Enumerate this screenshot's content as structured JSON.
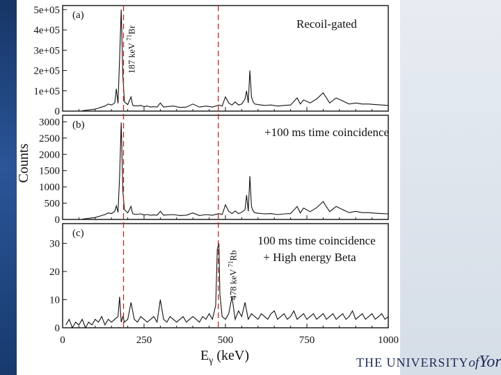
{
  "chart_data": [
    {
      "type": "line",
      "panel": "(a)",
      "annotation": "Recoil-gated",
      "ylim": [
        0,
        520000
      ],
      "yticks": [
        0,
        100000,
        200000,
        300000,
        400000,
        500000
      ],
      "ytick_labels": [
        "0",
        "1e+05",
        "2e+05",
        "3e+05",
        "4e+05",
        "5e+05"
      ],
      "peak_label": {
        "energy": 187,
        "text": "187 keV",
        "isotope": "Br",
        "mass": "71"
      },
      "series": [
        {
          "x": [
            60,
            100,
            110,
            120,
            130,
            140,
            150,
            160,
            165,
            170,
            175,
            180,
            185,
            190,
            200,
            210,
            215,
            220,
            230,
            240,
            250,
            260,
            270,
            280,
            290,
            300,
            310,
            320,
            340,
            360,
            380,
            400,
            420,
            440,
            460,
            480,
            490,
            500,
            510,
            520,
            530,
            540,
            550,
            560,
            565,
            570,
            575,
            580,
            585,
            590,
            600,
            620,
            640,
            660,
            680,
            700,
            720,
            730,
            740,
            760,
            780,
            800,
            820,
            840,
            860,
            880,
            900,
            920,
            940,
            960,
            980,
            1000
          ],
          "y": [
            2000,
            10000,
            15000,
            20000,
            25000,
            35000,
            30000,
            40000,
            110000,
            38000,
            260000,
            500000,
            170000,
            45000,
            32000,
            70000,
            30000,
            26000,
            26000,
            28000,
            22000,
            25000,
            20000,
            22000,
            20000,
            40000,
            20000,
            22000,
            25000,
            18000,
            20000,
            35000,
            20000,
            25000,
            20000,
            30000,
            25000,
            70000,
            40000,
            30000,
            45000,
            30000,
            35000,
            60000,
            100000,
            40000,
            200000,
            70000,
            45000,
            35000,
            32000,
            28000,
            30000,
            25000,
            28000,
            30000,
            65000,
            35000,
            55000,
            40000,
            60000,
            90000,
            40000,
            65000,
            50000,
            35000,
            40000,
            35000,
            35000,
            32000,
            30000,
            28000
          ]
        }
      ]
    },
    {
      "type": "line",
      "panel": "(b)",
      "annotation": "+100 ms time coincidence",
      "ylim": [
        0,
        3200
      ],
      "yticks": [
        0,
        500,
        1000,
        1500,
        2000,
        2500,
        3000
      ],
      "ytick_labels": [
        "0",
        "500",
        "1000",
        "1500",
        "2000",
        "2500",
        "3000"
      ],
      "series": [
        {
          "x": [
            60,
            100,
            110,
            120,
            130,
            140,
            150,
            160,
            165,
            170,
            175,
            180,
            185,
            190,
            200,
            210,
            215,
            220,
            230,
            240,
            250,
            260,
            270,
            280,
            290,
            300,
            310,
            320,
            340,
            360,
            380,
            400,
            420,
            440,
            460,
            480,
            490,
            500,
            510,
            520,
            530,
            540,
            550,
            560,
            565,
            570,
            575,
            580,
            585,
            590,
            600,
            620,
            640,
            660,
            680,
            700,
            720,
            730,
            740,
            760,
            780,
            800,
            820,
            840,
            860,
            880,
            900,
            920,
            940,
            960,
            980,
            1000
          ],
          "y": [
            10,
            60,
            90,
            120,
            150,
            200,
            180,
            250,
            420,
            220,
            1330,
            2980,
            850,
            300,
            200,
            400,
            180,
            160,
            160,
            170,
            140,
            150,
            130,
            140,
            130,
            250,
            130,
            140,
            150,
            120,
            130,
            200,
            120,
            150,
            130,
            180,
            150,
            450,
            250,
            180,
            260,
            180,
            220,
            300,
            750,
            250,
            1330,
            400,
            260,
            210,
            190,
            170,
            180,
            150,
            170,
            180,
            400,
            200,
            350,
            240,
            360,
            550,
            240,
            400,
            300,
            210,
            250,
            210,
            210,
            190,
            180,
            170
          ]
        }
      ]
    },
    {
      "type": "line",
      "panel": "(c)",
      "annotation_lines": [
        "100 ms time coincidence",
        "+ High energy Beta"
      ],
      "ylim": [
        0,
        37
      ],
      "yticks": [
        0,
        10,
        20,
        30
      ],
      "ytick_labels": [
        "0",
        "10",
        "20",
        "30"
      ],
      "peak_label": {
        "energy": 478,
        "text": "478 keV",
        "isotope": "Rb",
        "mass": "71"
      },
      "series": [
        {
          "x": [
            10,
            20,
            30,
            40,
            50,
            60,
            70,
            80,
            90,
            100,
            110,
            120,
            130,
            140,
            150,
            160,
            170,
            175,
            180,
            185,
            190,
            200,
            210,
            220,
            230,
            240,
            250,
            260,
            270,
            280,
            290,
            300,
            310,
            320,
            330,
            340,
            350,
            360,
            370,
            380,
            390,
            400,
            410,
            420,
            430,
            440,
            450,
            460,
            470,
            475,
            480,
            483,
            490,
            500,
            510,
            520,
            530,
            540,
            550,
            560,
            570,
            580,
            590,
            600,
            610,
            620,
            630,
            640,
            650,
            660,
            670,
            680,
            690,
            700,
            710,
            720,
            730,
            740,
            750,
            760,
            770,
            780,
            790,
            800,
            810,
            820,
            830,
            840,
            850,
            860,
            870,
            880,
            890,
            900,
            910,
            920,
            930,
            940,
            950,
            960,
            970,
            980,
            990,
            1000
          ],
          "y": [
            1,
            3,
            0,
            2,
            1,
            3,
            0,
            2,
            1,
            3,
            2,
            4,
            1,
            3,
            2,
            3,
            4,
            11,
            2,
            4,
            2,
            3,
            9,
            3,
            2,
            4,
            3,
            2,
            3,
            4,
            2,
            10,
            3,
            2,
            4,
            3,
            2,
            3,
            4,
            2,
            3,
            4,
            3,
            2,
            4,
            3,
            5,
            3,
            8,
            28,
            30,
            12,
            4,
            3,
            5,
            11,
            3,
            6,
            4,
            9,
            3,
            5,
            4,
            3,
            5,
            4,
            3,
            5,
            6,
            3,
            4,
            5,
            3,
            4,
            6,
            3,
            4,
            5,
            3,
            4,
            5,
            3,
            4,
            5,
            3,
            4,
            5,
            3,
            4,
            5,
            3,
            4,
            6,
            3,
            4,
            5,
            3,
            4,
            5,
            3,
            4,
            5,
            3,
            4
          ]
        }
      ]
    }
  ],
  "axes": {
    "x_label": "E",
    "x_label_sub": "γ",
    "x_label_unit": " (keV)",
    "y_label": "Counts",
    "xlim": [
      0,
      1000
    ],
    "xticks": [
      0,
      250,
      500,
      750,
      1000
    ],
    "xtick_labels": [
      "0",
      "250",
      "500",
      "750",
      "1000"
    ]
  },
  "reference_lines": [
    187,
    478
  ],
  "colors": {
    "spectrum": "#111111",
    "dash": "#cc2222"
  },
  "logo": {
    "the": "THE ",
    "university": "UNIVERSITY",
    "of": "of",
    "york": "York"
  }
}
